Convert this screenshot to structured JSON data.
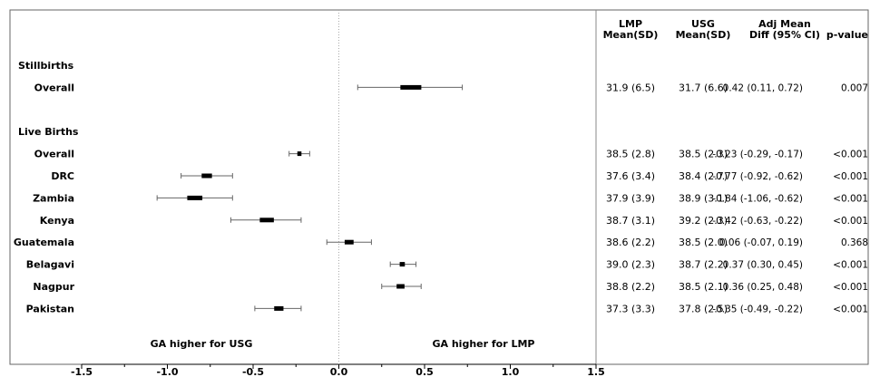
{
  "chart_data": {
    "type": "forest",
    "title": "",
    "xlim": [
      -1.5,
      1.5
    ],
    "x_ticks": [
      -1.5,
      -1.0,
      -0.5,
      0.0,
      0.5,
      1.0,
      1.5
    ],
    "x_tick_labels": [
      "-1.5",
      "-1.0",
      "-0.5",
      "0.0",
      "0.5",
      "1.0",
      "1.5"
    ],
    "reference_line": 0,
    "annotations": {
      "left": "GA higher for USG",
      "right": "GA higher for LMP"
    },
    "columns": [
      {
        "key": "lmp",
        "label_lines": [
          "LMP",
          "Mean(SD)"
        ]
      },
      {
        "key": "usg",
        "label_lines": [
          "USG",
          "Mean(SD)"
        ]
      },
      {
        "key": "adj",
        "label_lines": [
          "Adj Mean",
          "Diff (95% CI)"
        ]
      },
      {
        "key": "p",
        "label_lines": [
          "",
          "p-value"
        ]
      }
    ],
    "rows": [
      {
        "type": "header",
        "label": "Stillbirths"
      },
      {
        "type": "data",
        "label": "Overall",
        "estimate": 0.42,
        "ci_low": 0.11,
        "ci_high": 0.72,
        "lmp": "31.9 (6.5)",
        "usg": "31.7 (6.6)",
        "adj": "0.42 (0.11, 0.72)",
        "p": "0.007"
      },
      {
        "type": "blank"
      },
      {
        "type": "header",
        "label": "Live Births"
      },
      {
        "type": "data",
        "label": "Overall",
        "estimate": -0.23,
        "ci_low": -0.29,
        "ci_high": -0.17,
        "lmp": "38.5 (2.8)",
        "usg": "38.5 (2.3)",
        "adj": "-0.23 (-0.29, -0.17)",
        "p": "<0.001"
      },
      {
        "type": "data",
        "label": "DRC",
        "estimate": -0.77,
        "ci_low": -0.92,
        "ci_high": -0.62,
        "lmp": "37.6 (3.4)",
        "usg": "38.4 (2.7)",
        "adj": "-0.77 (-0.92, -0.62)",
        "p": "<0.001"
      },
      {
        "type": "data",
        "label": "Zambia",
        "estimate": -0.84,
        "ci_low": -1.06,
        "ci_high": -0.62,
        "lmp": "37.9 (3.9)",
        "usg": "38.9 (3.1)",
        "adj": "-0.84 (-1.06, -0.62)",
        "p": "<0.001"
      },
      {
        "type": "data",
        "label": "Kenya",
        "estimate": -0.42,
        "ci_low": -0.63,
        "ci_high": -0.22,
        "lmp": "38.7 (3.1)",
        "usg": "39.2 (2.3)",
        "adj": "-0.42 (-0.63, -0.22)",
        "p": "<0.001"
      },
      {
        "type": "data",
        "label": "Guatemala",
        "estimate": 0.06,
        "ci_low": -0.07,
        "ci_high": 0.19,
        "lmp": "38.6 (2.2)",
        "usg": "38.5 (2.0)",
        "adj": "0.06 (-0.07, 0.19)",
        "p": "0.368"
      },
      {
        "type": "data",
        "label": "Belagavi",
        "estimate": 0.37,
        "ci_low": 0.3,
        "ci_high": 0.45,
        "lmp": "39.0 (2.3)",
        "usg": "38.7 (2.2)",
        "adj": "0.37 (0.30, 0.45)",
        "p": "<0.001"
      },
      {
        "type": "data",
        "label": "Nagpur",
        "estimate": 0.36,
        "ci_low": 0.25,
        "ci_high": 0.48,
        "lmp": "38.8 (2.2)",
        "usg": "38.5 (2.1)",
        "adj": "0.36 (0.25, 0.48)",
        "p": "<0.001"
      },
      {
        "type": "data",
        "label": "Pakistan",
        "estimate": -0.35,
        "ci_low": -0.49,
        "ci_high": -0.22,
        "lmp": "37.3 (3.3)",
        "usg": "37.8 (2.5)",
        "adj": "-0.35 (-0.49, -0.22)",
        "p": "<0.001"
      }
    ]
  }
}
